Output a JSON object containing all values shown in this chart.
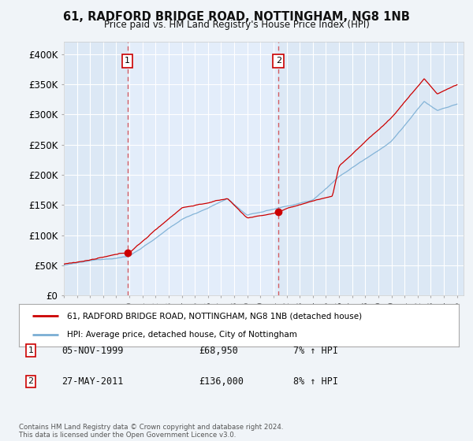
{
  "title": "61, RADFORD BRIDGE ROAD, NOTTINGHAM, NG8 1NB",
  "subtitle": "Price paid vs. HM Land Registry's House Price Index (HPI)",
  "ylabel_ticks": [
    "£0",
    "£50K",
    "£100K",
    "£150K",
    "£200K",
    "£250K",
    "£300K",
    "£350K",
    "£400K"
  ],
  "ytick_values": [
    0,
    50000,
    100000,
    150000,
    200000,
    250000,
    300000,
    350000,
    400000
  ],
  "ylim": [
    0,
    420000
  ],
  "xlim_start": 1995.0,
  "xlim_end": 2025.5,
  "line1_label": "61, RADFORD BRIDGE ROAD, NOTTINGHAM, NG8 1NB (detached house)",
  "line2_label": "HPI: Average price, detached house, City of Nottingham",
  "line1_color": "#cc0000",
  "line2_color": "#7aaed4",
  "transaction1_x": 1999.85,
  "transaction1_y": 68950,
  "transaction2_x": 2011.38,
  "transaction2_y": 136000,
  "footnote": "Contains HM Land Registry data © Crown copyright and database right 2024.\nThis data is licensed under the Open Government Licence v3.0.",
  "table_rows": [
    {
      "label": "1",
      "date": "05-NOV-1999",
      "price": "£68,950",
      "hpi": "7% ↑ HPI"
    },
    {
      "label": "2",
      "date": "27-MAY-2011",
      "price": "£136,000",
      "hpi": "8% ↑ HPI"
    }
  ],
  "background_color": "#f0f4f8",
  "plot_bg_color": "#dce8f5",
  "plot_bg_highlight": "#e8f2ff"
}
